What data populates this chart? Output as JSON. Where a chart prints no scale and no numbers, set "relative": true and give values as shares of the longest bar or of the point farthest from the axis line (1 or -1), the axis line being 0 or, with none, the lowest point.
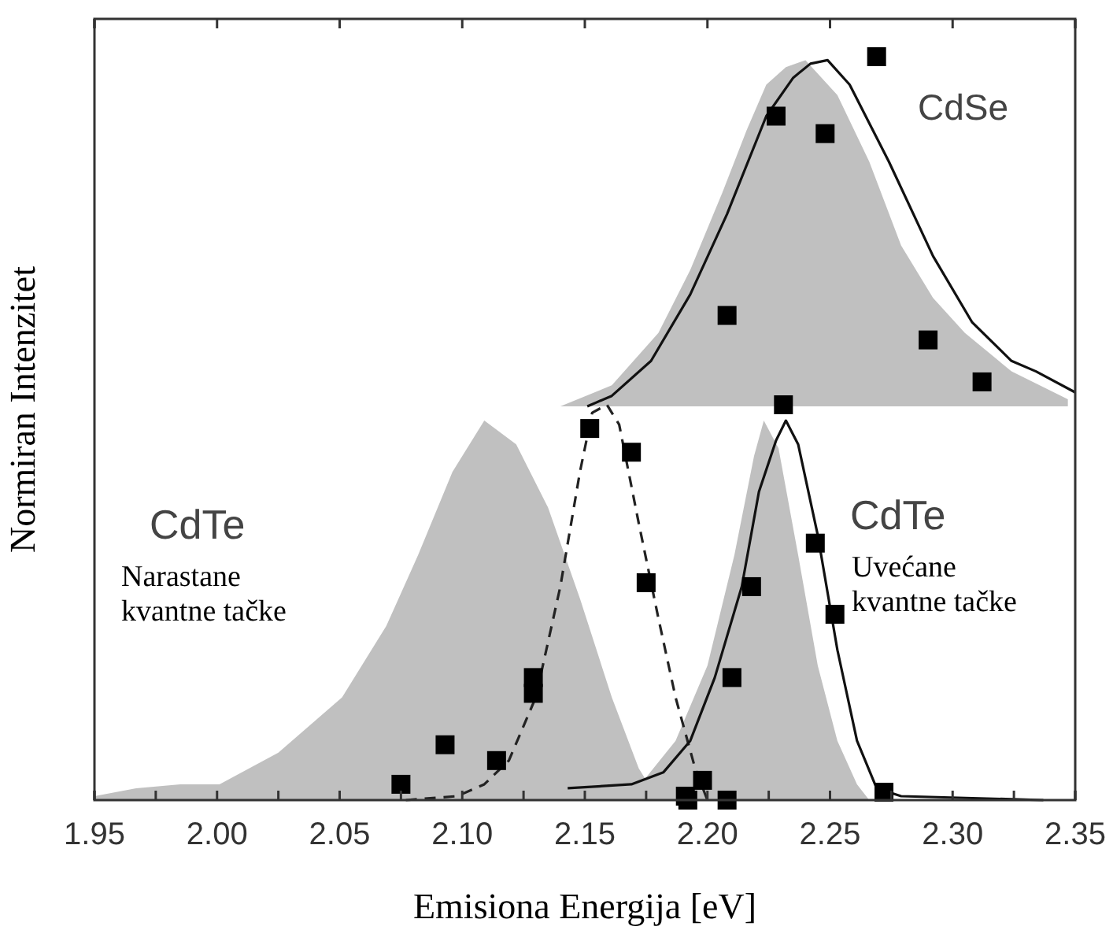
{
  "chart_data": [
    {
      "type": "line",
      "relative": true,
      "xlim": [
        1.95,
        2.35
      ],
      "tick_labels": false,
      "xticks": [
        1.95,
        2.0,
        2.05,
        2.1,
        2.15,
        2.2,
        2.25,
        2.3,
        2.35
      ],
      "annotations": [
        "CdSe"
      ],
      "series": [
        {
          "type": "area",
          "color": "#c0c0c0",
          "x": [
            2.14,
            2.161,
            2.18,
            2.193,
            2.206,
            2.216,
            2.224,
            2.232,
            2.24,
            2.253,
            2.266,
            2.279,
            2.292,
            2.305,
            2.324,
            2.347
          ],
          "values": [
            0,
            0.06,
            0.21,
            0.39,
            0.61,
            0.79,
            0.92,
            0.97,
            0.99,
            0.89,
            0.7,
            0.46,
            0.31,
            0.21,
            0.1,
            0.02
          ]
        },
        {
          "type": "line",
          "color": "#111111",
          "line_style": "solid",
          "x": [
            2.151,
            2.161,
            2.177,
            2.193,
            2.208,
            2.224,
            2.235,
            2.242,
            2.249,
            2.258,
            2.274,
            2.292,
            2.308,
            2.324,
            2.334,
            2.35
          ],
          "values": [
            0,
            0.03,
            0.13,
            0.32,
            0.55,
            0.83,
            0.94,
            0.98,
            0.99,
            0.92,
            0.7,
            0.43,
            0.24,
            0.13,
            0.1,
            0.04
          ]
        },
        {
          "type": "scatter",
          "color": "#000000",
          "marker": "square",
          "x": [
            2.208,
            2.228,
            2.248,
            2.269,
            2.29,
            2.312
          ],
          "values": [
            0.26,
            0.83,
            0.78,
            1.0,
            0.19,
            0.07
          ]
        }
      ]
    },
    {
      "type": "line",
      "relative": true,
      "xlim": [
        1.95,
        2.35
      ],
      "tick_labels": "x",
      "xticks": [
        1.95,
        {
          "value": 1.975,
          "label": null
        },
        {
          "value": 2.0,
          "label": "2.00"
        },
        {
          "value": 2.025,
          "label": null
        },
        2.05,
        {
          "value": 2.075,
          "label": null
        },
        {
          "value": 2.1,
          "label": "2.10"
        },
        {
          "value": 2.125,
          "label": null
        },
        2.15,
        {
          "value": 2.175,
          "label": null
        },
        {
          "value": 2.2,
          "label": "2.20"
        },
        {
          "value": 2.225,
          "label": null
        },
        2.25,
        {
          "value": 2.275,
          "label": null
        },
        {
          "value": 2.3,
          "label": "2.30"
        },
        {
          "value": 2.325,
          "label": null
        },
        2.35
      ],
      "xlabel": "Emisiona Energija [eV]",
      "ylabel": "Normiran Intenzitet",
      "annotations": [
        "CdTe",
        "Narastane\nkvantne tačke",
        "CdTe",
        "Uvećane\nkvantne tačke"
      ],
      "series": [
        {
          "type": "area",
          "color": "#c0c0c0",
          "x": [
            1.95,
            1.967,
            1.985,
            2.001,
            2.025,
            2.051,
            2.069,
            2.082,
            2.096,
            2.109,
            2.122,
            2.135,
            2.148,
            2.161,
            2.172,
            2.18
          ],
          "values": [
            0.01,
            0.03,
            0.04,
            0.04,
            0.12,
            0.26,
            0.44,
            0.62,
            0.83,
            0.96,
            0.9,
            0.74,
            0.51,
            0.26,
            0.08,
            0
          ]
        },
        {
          "type": "area",
          "color": "#c0c0c0",
          "x": [
            2.169,
            2.174,
            2.187,
            2.2,
            2.211,
            2.219,
            2.223,
            2.229,
            2.237,
            2.245,
            2.253,
            2.261,
            2.266
          ],
          "values": [
            0,
            0.05,
            0.15,
            0.34,
            0.62,
            0.87,
            0.96,
            0.89,
            0.62,
            0.34,
            0.15,
            0.04,
            0
          ]
        },
        {
          "type": "line",
          "color": "#222222",
          "line_style": "dashed",
          "x": [
            2.077,
            2.098,
            2.109,
            2.119,
            2.13,
            2.14,
            2.148,
            2.153,
            2.159,
            2.164,
            2.172,
            2.18,
            2.187,
            2.195,
            2.2
          ],
          "values": [
            0,
            0.01,
            0.04,
            0.1,
            0.26,
            0.54,
            0.83,
            0.98,
            1.0,
            0.95,
            0.7,
            0.46,
            0.26,
            0.08,
            0
          ]
        },
        {
          "type": "line",
          "color": "#111111",
          "line_style": "solid",
          "x": [
            2.143,
            2.169,
            2.182,
            2.193,
            2.203,
            2.214,
            2.221,
            2.228,
            2.232,
            2.237,
            2.245,
            2.253,
            2.261,
            2.269,
            2.279,
            2.337
          ],
          "values": [
            0.03,
            0.04,
            0.07,
            0.15,
            0.31,
            0.54,
            0.78,
            0.91,
            0.96,
            0.9,
            0.67,
            0.38,
            0.15,
            0.03,
            0.01,
            0
          ]
        },
        {
          "type": "scatter",
          "color": "#000000",
          "marker": "square",
          "x": [
            2.075,
            2.093,
            2.114,
            2.129,
            2.129,
            2.152,
            2.169,
            2.175,
            2.191,
            2.198,
            2.192,
            2.208,
            2.21,
            2.218,
            2.231,
            2.244,
            2.252,
            2.272
          ],
          "values": [
            0.04,
            0.14,
            0.1,
            0.31,
            0.27,
            0.94,
            0.88,
            0.55,
            0.01,
            0.05,
            0.0,
            0.0,
            0.31,
            0.54,
            1.0,
            0.65,
            0.47,
            0.02
          ]
        }
      ]
    }
  ]
}
